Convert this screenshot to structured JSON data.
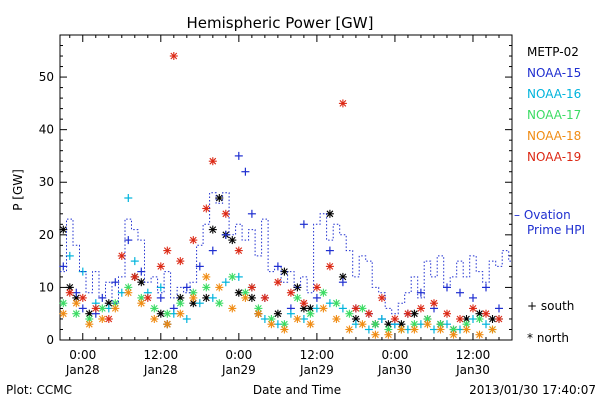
{
  "chart_data": {
    "type": "scatter",
    "title": "Hemispheric Power [GW]",
    "xlabel": "Date and Time",
    "ylabel": "P [GW]",
    "footer_left": "Plot: CCMC",
    "footer_right": "2013/01/30 17:40:07",
    "x_unit": "hours since 2013-01-28 00:00",
    "xlim": [
      -3.5,
      66
    ],
    "ylim": [
      0,
      58
    ],
    "y_ticks": [
      0,
      10,
      20,
      30,
      40,
      50
    ],
    "x_ticks": [
      {
        "x": 0,
        "top": "0:00",
        "bottom": "Jan28"
      },
      {
        "x": 12,
        "top": "12:00",
        "bottom": "Jan28"
      },
      {
        "x": 24,
        "top": "0:00",
        "bottom": "Jan29"
      },
      {
        "x": 36,
        "top": "12:00",
        "bottom": "Jan29"
      },
      {
        "x": 48,
        "top": "0:00",
        "bottom": "Jan30"
      },
      {
        "x": 60,
        "top": "12:00",
        "bottom": "Jan30"
      }
    ],
    "legend_placement": "right",
    "marker_legend": [
      {
        "symbol": "+",
        "label": "south"
      },
      {
        "symbol": "*",
        "label": "north"
      }
    ],
    "series": [
      {
        "name": "METP-02",
        "color": "#000000",
        "marker": "*",
        "points": [
          [
            -3,
            21
          ],
          [
            -2,
            10
          ],
          [
            -1,
            8
          ],
          [
            1,
            5
          ],
          [
            4,
            7
          ],
          [
            8,
            12
          ],
          [
            9,
            11
          ],
          [
            12,
            5
          ],
          [
            13,
            3
          ],
          [
            15,
            8
          ],
          [
            17,
            7
          ],
          [
            19,
            8
          ],
          [
            20,
            21
          ],
          [
            21,
            27
          ],
          [
            22,
            20
          ],
          [
            23,
            19
          ],
          [
            24,
            9
          ],
          [
            26,
            8
          ],
          [
            27,
            5
          ],
          [
            30,
            5
          ],
          [
            31,
            13
          ],
          [
            33,
            10
          ],
          [
            34,
            6
          ],
          [
            35,
            6
          ],
          [
            38,
            24
          ],
          [
            40,
            12
          ],
          [
            42,
            4
          ],
          [
            45,
            3
          ],
          [
            47,
            3
          ],
          [
            49,
            3
          ],
          [
            51,
            5
          ],
          [
            53,
            4
          ],
          [
            55,
            3
          ],
          [
            57,
            2
          ],
          [
            59,
            4
          ],
          [
            61,
            5
          ],
          [
            63,
            4
          ]
        ]
      },
      {
        "name": "NOAA-15",
        "color": "#1f2fd0",
        "marker": "+",
        "points": [
          [
            -3,
            14
          ],
          [
            -1,
            9
          ],
          [
            0,
            6
          ],
          [
            2,
            5
          ],
          [
            3,
            8
          ],
          [
            5,
            11
          ],
          [
            7,
            19
          ],
          [
            9,
            13
          ],
          [
            12,
            8
          ],
          [
            14,
            6
          ],
          [
            16,
            10
          ],
          [
            18,
            14
          ],
          [
            20,
            17
          ],
          [
            22,
            20
          ],
          [
            24,
            35
          ],
          [
            25,
            32
          ],
          [
            26,
            24
          ],
          [
            28,
            8
          ],
          [
            30,
            14
          ],
          [
            32,
            6
          ],
          [
            34,
            22
          ],
          [
            36,
            8
          ],
          [
            38,
            17
          ],
          [
            40,
            11
          ],
          [
            42,
            6
          ],
          [
            44,
            5
          ],
          [
            46,
            4
          ],
          [
            48,
            3
          ],
          [
            50,
            5
          ],
          [
            52,
            9
          ],
          [
            54,
            6
          ],
          [
            56,
            10
          ],
          [
            58,
            9
          ],
          [
            60,
            8
          ],
          [
            62,
            10
          ],
          [
            64,
            6
          ]
        ]
      },
      {
        "name": "NOAA-16",
        "color": "#00b4dc",
        "marker": "+",
        "points": [
          [
            -2,
            16
          ],
          [
            0,
            13
          ],
          [
            2,
            7
          ],
          [
            4,
            6
          ],
          [
            6,
            9
          ],
          [
            7,
            27
          ],
          [
            8,
            15
          ],
          [
            10,
            9
          ],
          [
            12,
            10
          ],
          [
            14,
            5
          ],
          [
            16,
            4
          ],
          [
            18,
            7
          ],
          [
            20,
            8
          ],
          [
            22,
            11
          ],
          [
            24,
            12
          ],
          [
            26,
            10
          ],
          [
            28,
            4
          ],
          [
            30,
            3
          ],
          [
            32,
            5
          ],
          [
            34,
            4
          ],
          [
            36,
            6
          ],
          [
            38,
            7
          ],
          [
            40,
            6
          ],
          [
            42,
            3
          ],
          [
            44,
            2
          ],
          [
            46,
            4
          ],
          [
            48,
            3
          ],
          [
            50,
            2
          ],
          [
            52,
            3
          ],
          [
            54,
            2
          ],
          [
            56,
            3
          ],
          [
            58,
            2
          ],
          [
            60,
            4
          ],
          [
            62,
            3
          ],
          [
            64,
            4
          ]
        ]
      },
      {
        "name": "NOAA-17",
        "color": "#3cdc64",
        "marker": "*",
        "points": [
          [
            -3,
            7
          ],
          [
            -1,
            5
          ],
          [
            1,
            4
          ],
          [
            3,
            6
          ],
          [
            5,
            7
          ],
          [
            7,
            10
          ],
          [
            9,
            8
          ],
          [
            11,
            6
          ],
          [
            13,
            5
          ],
          [
            15,
            7
          ],
          [
            17,
            9
          ],
          [
            19,
            10
          ],
          [
            21,
            7
          ],
          [
            23,
            12
          ],
          [
            25,
            9
          ],
          [
            27,
            6
          ],
          [
            29,
            4
          ],
          [
            31,
            3
          ],
          [
            33,
            8
          ],
          [
            35,
            5
          ],
          [
            37,
            9
          ],
          [
            39,
            7
          ],
          [
            41,
            5
          ],
          [
            43,
            6
          ],
          [
            45,
            3
          ],
          [
            47,
            2
          ],
          [
            49,
            2
          ],
          [
            51,
            3
          ],
          [
            53,
            4
          ],
          [
            55,
            3
          ],
          [
            57,
            2
          ],
          [
            59,
            3
          ],
          [
            61,
            4
          ],
          [
            63,
            2
          ]
        ]
      },
      {
        "name": "NOAA-18",
        "color": "#f08c14",
        "marker": "*",
        "points": [
          [
            -3,
            5
          ],
          [
            -1,
            7
          ],
          [
            1,
            3
          ],
          [
            3,
            4
          ],
          [
            5,
            6
          ],
          [
            7,
            9
          ],
          [
            9,
            7
          ],
          [
            11,
            4
          ],
          [
            13,
            3
          ],
          [
            15,
            5
          ],
          [
            17,
            8
          ],
          [
            19,
            12
          ],
          [
            21,
            10
          ],
          [
            23,
            6
          ],
          [
            25,
            8
          ],
          [
            27,
            5
          ],
          [
            29,
            3
          ],
          [
            31,
            2
          ],
          [
            33,
            4
          ],
          [
            35,
            3
          ],
          [
            37,
            6
          ],
          [
            39,
            4
          ],
          [
            41,
            2
          ],
          [
            43,
            3
          ],
          [
            45,
            1
          ],
          [
            47,
            1
          ],
          [
            49,
            2
          ],
          [
            51,
            2
          ],
          [
            53,
            3
          ],
          [
            55,
            2
          ],
          [
            57,
            1
          ],
          [
            59,
            2
          ],
          [
            61,
            1
          ],
          [
            63,
            2
          ]
        ]
      },
      {
        "name": "NOAA-19",
        "color": "#dc2814",
        "marker": "*",
        "points": [
          [
            -2,
            9
          ],
          [
            0,
            8
          ],
          [
            2,
            6
          ],
          [
            4,
            4
          ],
          [
            6,
            16
          ],
          [
            8,
            12
          ],
          [
            10,
            8
          ],
          [
            12,
            14
          ],
          [
            13,
            17
          ],
          [
            14,
            54
          ],
          [
            15,
            15
          ],
          [
            17,
            19
          ],
          [
            19,
            25
          ],
          [
            20,
            34
          ],
          [
            22,
            24
          ],
          [
            24,
            17
          ],
          [
            26,
            10
          ],
          [
            28,
            8
          ],
          [
            30,
            11
          ],
          [
            32,
            9
          ],
          [
            34,
            7
          ],
          [
            36,
            10
          ],
          [
            38,
            14
          ],
          [
            40,
            45
          ],
          [
            42,
            6
          ],
          [
            44,
            5
          ],
          [
            46,
            8
          ],
          [
            48,
            4
          ],
          [
            50,
            5
          ],
          [
            52,
            6
          ],
          [
            54,
            7
          ],
          [
            56,
            5
          ],
          [
            58,
            4
          ],
          [
            60,
            6
          ],
          [
            62,
            5
          ],
          [
            64,
            4
          ]
        ]
      },
      {
        "name": "Ovation Prime HPI",
        "color": "#1f2fd0",
        "style": "dotted-step",
        "points": [
          [
            -3.5,
            13
          ],
          [
            -2.5,
            23
          ],
          [
            -1.5,
            18
          ],
          [
            -0.5,
            13
          ],
          [
            0.5,
            9
          ],
          [
            1.5,
            13
          ],
          [
            2.5,
            8
          ],
          [
            3.5,
            11
          ],
          [
            4.5,
            7
          ],
          [
            5.5,
            12
          ],
          [
            6.5,
            23
          ],
          [
            7.5,
            21
          ],
          [
            8.5,
            19
          ],
          [
            9.5,
            11
          ],
          [
            10.5,
            12
          ],
          [
            11.5,
            9
          ],
          [
            12.5,
            13
          ],
          [
            13.5,
            8
          ],
          [
            14.5,
            10
          ],
          [
            15.5,
            9
          ],
          [
            16.5,
            11
          ],
          [
            17.5,
            18
          ],
          [
            18.5,
            22
          ],
          [
            19.5,
            28
          ],
          [
            20.5,
            26
          ],
          [
            21.5,
            28
          ],
          [
            22.5,
            20
          ],
          [
            23.5,
            22
          ],
          [
            24.5,
            19
          ],
          [
            25.5,
            21
          ],
          [
            26.5,
            16
          ],
          [
            27.5,
            23
          ],
          [
            28.5,
            13
          ],
          [
            29.5,
            14
          ],
          [
            30.5,
            11
          ],
          [
            31.5,
            13
          ],
          [
            32.5,
            10
          ],
          [
            33.5,
            12
          ],
          [
            34.5,
            9
          ],
          [
            35.5,
            22
          ],
          [
            36.5,
            24
          ],
          [
            37.5,
            19
          ],
          [
            38.5,
            22
          ],
          [
            39.5,
            20
          ],
          [
            40.5,
            17
          ],
          [
            41.5,
            12
          ],
          [
            42.5,
            16
          ],
          [
            43.5,
            15
          ],
          [
            44.5,
            10
          ],
          [
            45.5,
            9
          ],
          [
            46.5,
            6
          ],
          [
            47.5,
            5
          ],
          [
            48.5,
            7
          ],
          [
            49.5,
            9
          ],
          [
            50.5,
            12
          ],
          [
            51.5,
            8
          ],
          [
            52.5,
            15
          ],
          [
            53.5,
            12
          ],
          [
            54.5,
            16
          ],
          [
            55.5,
            10
          ],
          [
            56.5,
            12
          ],
          [
            57.5,
            15
          ],
          [
            58.5,
            12
          ],
          [
            59.5,
            16
          ],
          [
            60.5,
            13
          ],
          [
            61.5,
            11
          ],
          [
            62.5,
            15
          ],
          [
            63.5,
            14
          ],
          [
            64.5,
            17
          ],
          [
            65.5,
            15
          ]
        ]
      }
    ]
  }
}
